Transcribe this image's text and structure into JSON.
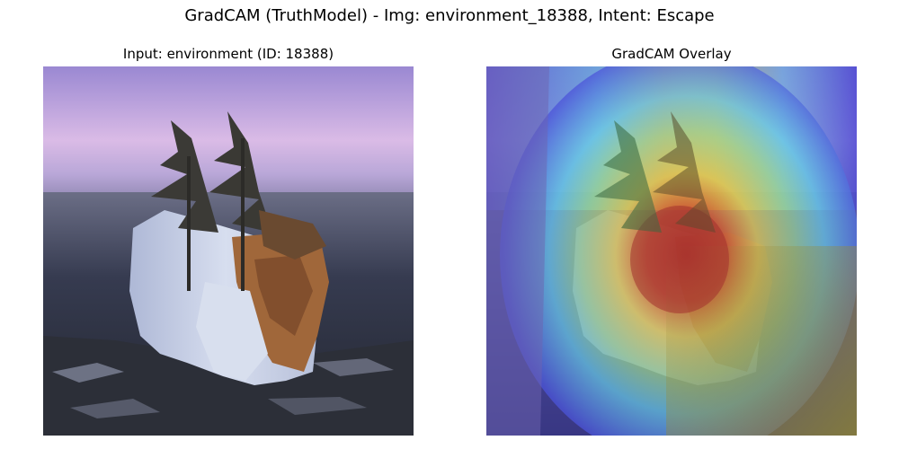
{
  "figure": {
    "title": "GradCAM (TruthModel) - Img: environment_18388, Intent: Escape"
  },
  "panels": [
    {
      "title": "Input: environment (ID: 18388)",
      "content": "photo of a rocky islet with two pine trees at dusk over water"
    },
    {
      "title": "GradCAM Overlay",
      "content": "same photo with jet-colormap heatmap overlay, hottest (red) over the tree canopy center"
    }
  ],
  "colors": {
    "sky_top": "#9b8ad6",
    "sky_bottom": "#dcbce8",
    "water": "#2f3446",
    "ice": "#c9d3e6",
    "foliage_rust": "#a0673a",
    "tree_dark": "#3a3a36",
    "heat_red": "#c0392b",
    "heat_yellow": "#e8d34a",
    "heat_cyan": "#6fd3e6",
    "heat_blue": "#4b47d6"
  }
}
